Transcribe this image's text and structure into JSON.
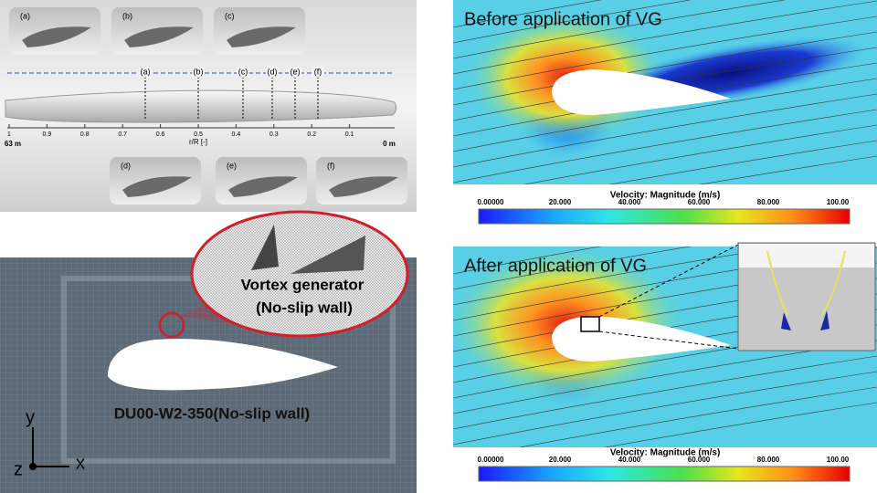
{
  "blade_panel": {
    "thumbnail_labels": [
      "(a)",
      "(b)",
      "(c)",
      "(d)",
      "(e)",
      "(f)"
    ],
    "station_labels": [
      "(a)",
      "(b)",
      "(c)",
      "(d)",
      "(e)",
      "(f)"
    ],
    "axis_ticks": [
      "1",
      "0.9",
      "0.8",
      "0.7",
      "0.6",
      "0.5",
      "0.4",
      "0.3",
      "0.2",
      "0.1"
    ],
    "left_end": "63 m",
    "right_end": "0 m",
    "axis_label": "r/R [-]"
  },
  "mesh_panel": {
    "callout": [
      "Vortex generator",
      "(No-slip wall)"
    ],
    "airfoil_label": "DU00-W2-350(No-slip wall)",
    "axes": {
      "y": "y",
      "z": "z",
      "x": "x"
    }
  },
  "contour_panels": [
    {
      "title": "Before application of VG",
      "colorbar": {
        "title": "Velocity: Magnitude (m/s)",
        "ticks": [
          "0.00000",
          "20.000",
          "40.000",
          "60.000",
          "80.000",
          "100.00"
        ]
      }
    },
    {
      "title": "After application of VG",
      "colorbar": {
        "title": "Velocity: Magnitude (m/s)",
        "ticks": [
          "0.00000",
          "20.000",
          "40.000",
          "60.000",
          "80.000",
          "100.00"
        ]
      }
    }
  ]
}
